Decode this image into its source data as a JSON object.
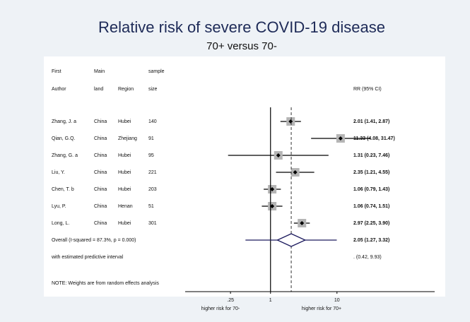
{
  "chart_data": {
    "type": "forest",
    "title": "Relative risk of severe COVID-19 disease",
    "subtitle": "70+ versus 70-",
    "header_top": [
      "First",
      "Main",
      "sample"
    ],
    "header_bottom": [
      "Author",
      "land",
      "Region",
      "size",
      "RR (95% CI)"
    ],
    "studies": [
      {
        "author": "Zhang, J. a",
        "mainland": "China",
        "region": "Hubei",
        "size": 140,
        "rr": 2.01,
        "lower": 1.41,
        "upper": 2.87,
        "label": "2.01 (1.41, 2.87)"
      },
      {
        "author": "Qian, G.Q.",
        "mainland": "China",
        "region": "Zhejiang",
        "size": 91,
        "rr": 11.33,
        "lower": 4.08,
        "upper": 31.47,
        "label": "11.33 (4.08, 31.47)"
      },
      {
        "author": "Zhang, G. a",
        "mainland": "China",
        "region": "Hubei",
        "size": 95,
        "rr": 1.31,
        "lower": 0.23,
        "upper": 7.46,
        "label": "1.31 (0.23, 7.46)"
      },
      {
        "author": "Liu, Y.",
        "mainland": "China",
        "region": "Hubei",
        "size": 221,
        "rr": 2.35,
        "lower": 1.21,
        "upper": 4.55,
        "label": "2.35 (1.21, 4.55)"
      },
      {
        "author": "Chen, T. b",
        "mainland": "China",
        "region": "Hubei",
        "size": 203,
        "rr": 1.06,
        "lower": 0.79,
        "upper": 1.43,
        "label": "1.06 (0.79, 1.43)"
      },
      {
        "author": "Lyu, P.",
        "mainland": "China",
        "region": "Henan",
        "size": 51,
        "rr": 1.06,
        "lower": 0.74,
        "upper": 1.51,
        "label": "1.06 (0.74, 1.51)"
      },
      {
        "author": "Long, L.",
        "mainland": "China",
        "region": "Hubei",
        "size": 301,
        "rr": 2.97,
        "lower": 2.25,
        "upper": 3.9,
        "label": "2.97 (2.25, 3.90)"
      }
    ],
    "overall": {
      "label": "Overall  (I-squared = 87.3%, p = 0.000)",
      "rr": 2.05,
      "lower": 1.27,
      "upper": 3.32,
      "ci_label": "2.05 (1.27, 3.32)",
      "pi_text": "with estimated predictive interval",
      "pi_lower": 0.42,
      "pi_upper": 9.93,
      "pi_label": ".       (0.42, 9.93)"
    },
    "note": "NOTE: Weights are from random effects analysis",
    "xscale": "log",
    "xlim": [
      0.052,
      295
    ],
    "xticks": [
      {
        "value": 0.25,
        "label": ".25"
      },
      1,
      10
    ],
    "left_label": "higher risk for 70-",
    "right_label": "higher risk for 70+",
    "box_color": "#b5b5b5",
    "diamond_color": "#1c1a5e"
  }
}
